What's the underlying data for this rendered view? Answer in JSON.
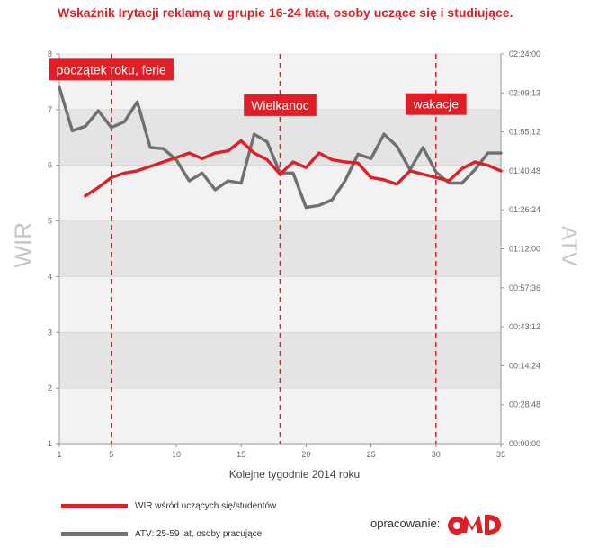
{
  "title": "Wskaźnik Irytacji reklamą w grupie 16-24 lata, osoby uczące się i studiujące.",
  "footer": {
    "credit_label": "opracowanie:",
    "logo_text": "OMD"
  },
  "colors": {
    "wir": "#e01e26",
    "atv": "#707070",
    "marker": "#e01e26",
    "band": "#e4e4e4",
    "band_alt": "#f2f2f2"
  },
  "chart_data": {
    "type": "line",
    "title": "Wskaźnik Irytacji reklamą w grupie 16-24 lata, osoby uczące się i studiujące.",
    "xlabel": "Kolejne tygodnie 2014 roku",
    "ylabel_left": "WIR",
    "ylabel_right": "ATV",
    "xlim": [
      1,
      35
    ],
    "ylim": [
      1,
      8
    ],
    "x_ticks": [
      1,
      5,
      10,
      15,
      20,
      25,
      30,
      35
    ],
    "y_ticks": [
      1,
      2,
      3,
      4,
      5,
      6,
      7,
      8
    ],
    "y2_ticks": [
      "02:24:00",
      "02:09:13",
      "01:55:12",
      "01:40:48",
      "01:26:24",
      "01:12:00",
      "00:57:36",
      "00:43:12",
      "00:14:24",
      "00:28:48",
      "00:00:00"
    ],
    "series": [
      {
        "name": "WIR wśród uczących się/studentów",
        "axis": "left",
        "x": [
          3,
          4,
          5,
          6,
          7,
          8,
          9,
          10,
          11,
          12,
          13,
          14,
          15,
          16,
          17,
          18,
          19,
          20,
          21,
          22,
          23,
          24,
          25,
          26,
          27,
          28,
          29,
          30,
          31,
          32,
          33,
          34,
          35
        ],
        "values": [
          5.45,
          5.6,
          5.78,
          5.86,
          5.9,
          5.98,
          6.06,
          6.14,
          6.22,
          6.12,
          6.22,
          6.26,
          6.44,
          6.22,
          6.1,
          5.84,
          6.06,
          5.96,
          6.22,
          6.1,
          6.06,
          6.04,
          5.78,
          5.74,
          5.66,
          5.9,
          5.84,
          5.78,
          5.72,
          5.94,
          6.06,
          6.0,
          5.9
        ]
      },
      {
        "name": "ATV: 25-59 lat, osoby pracujące",
        "axis": "right",
        "x": [
          1,
          2,
          3,
          4,
          5,
          6,
          7,
          8,
          9,
          10,
          11,
          12,
          13,
          14,
          15,
          16,
          17,
          18,
          19,
          20,
          21,
          22,
          23,
          24,
          25,
          26,
          27,
          28,
          29,
          30,
          31,
          32,
          33,
          34,
          35
        ],
        "values": [
          7.4,
          6.62,
          6.7,
          6.98,
          6.68,
          6.78,
          7.14,
          6.32,
          6.3,
          6.1,
          5.72,
          5.86,
          5.56,
          5.72,
          5.68,
          6.56,
          6.42,
          5.86,
          5.86,
          5.24,
          5.28,
          5.38,
          5.72,
          6.2,
          6.12,
          6.56,
          6.34,
          5.92,
          6.32,
          5.88,
          5.68,
          5.68,
          5.92,
          6.22,
          6.22
        ]
      }
    ],
    "markers": [
      {
        "x": 5,
        "label": "początek roku, ferie",
        "box_y": 7.72
      },
      {
        "x": 18,
        "label": "Wielkanoc",
        "box_y": 7.08
      },
      {
        "x": 30,
        "label": "wakacje",
        "box_y": 7.1
      }
    ]
  }
}
